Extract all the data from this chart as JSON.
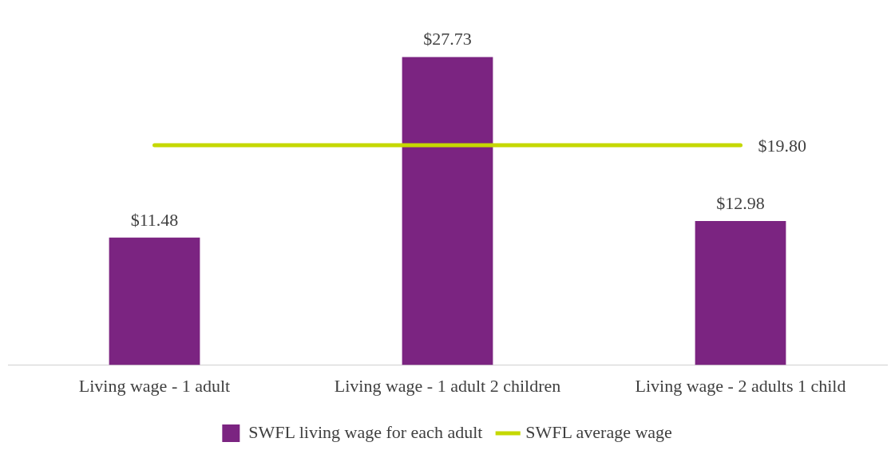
{
  "chart_data": {
    "type": "bar",
    "categories": [
      "Living wage - 1 adult",
      "Living wage - 1 adult 2 children",
      "Living wage - 2 adults 1 child"
    ],
    "series": [
      {
        "name": "SWFL living wage for each adult",
        "color": "#7b2481",
        "values": [
          11.48,
          27.73,
          12.98
        ],
        "value_labels": [
          "$11.48",
          "$27.73",
          "$12.98"
        ]
      },
      {
        "name": "SWFL average wage",
        "type": "line",
        "color": "#c5d800",
        "values": [
          19.8,
          19.8,
          19.8
        ],
        "value_labels": [
          null,
          null,
          "$19.80"
        ],
        "marker": "none",
        "line_style": "solid"
      }
    ],
    "legend": "bottom"
  }
}
